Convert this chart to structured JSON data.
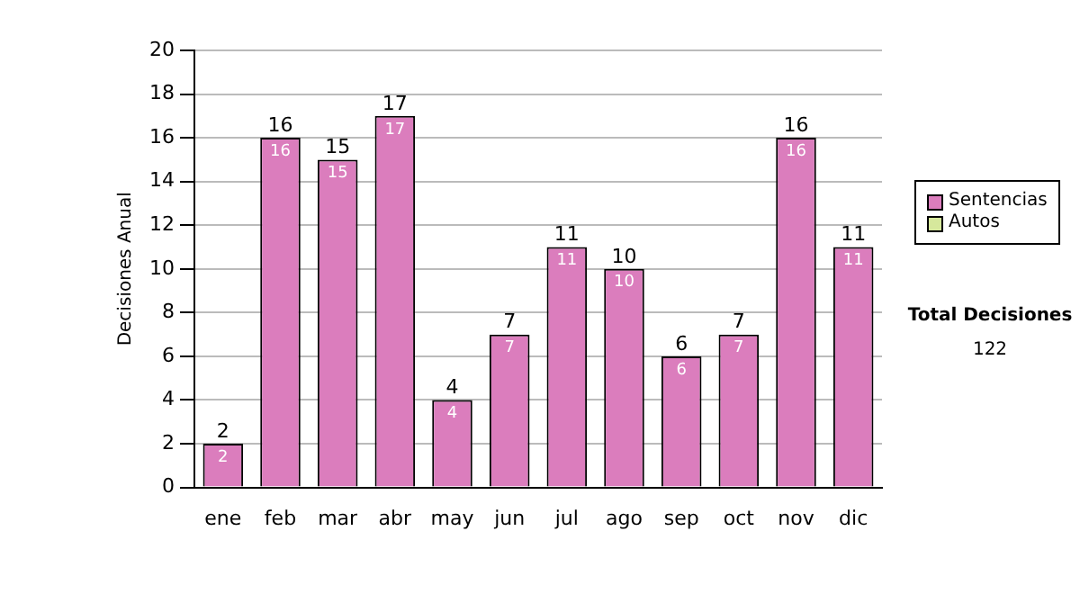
{
  "chart_data": {
    "type": "bar",
    "ylabel": "Decisiones Anual",
    "categories": [
      "ene",
      "feb",
      "mar",
      "abr",
      "may",
      "jun",
      "jul",
      "ago",
      "sep",
      "oct",
      "nov",
      "dic"
    ],
    "series": [
      {
        "name": "Sentencias",
        "color": "#db7dbd",
        "values": [
          2,
          16,
          15,
          17,
          4,
          7,
          11,
          10,
          6,
          7,
          16,
          11
        ],
        "value_labels": [
          "2",
          "16",
          "15",
          "17",
          "4",
          "7",
          "11",
          "10",
          "6",
          "7",
          "16",
          "11"
        ]
      },
      {
        "name": "Autos",
        "color": "#d6e89c",
        "values": [
          0,
          0,
          0,
          0,
          0,
          0,
          0,
          0,
          0,
          0,
          0,
          0
        ]
      }
    ],
    "stacked": true,
    "totals": [
      "2",
      "16",
      "15",
      "17",
      "4",
      "7",
      "11",
      "10",
      "6",
      "7",
      "16",
      "11"
    ],
    "ylim": [
      0,
      20
    ],
    "yticks": [
      0,
      2,
      4,
      6,
      8,
      10,
      12,
      14,
      16,
      18,
      20
    ],
    "grid": "y",
    "legend": "right",
    "annotations": [
      "Total Decisiones",
      "122"
    ]
  }
}
